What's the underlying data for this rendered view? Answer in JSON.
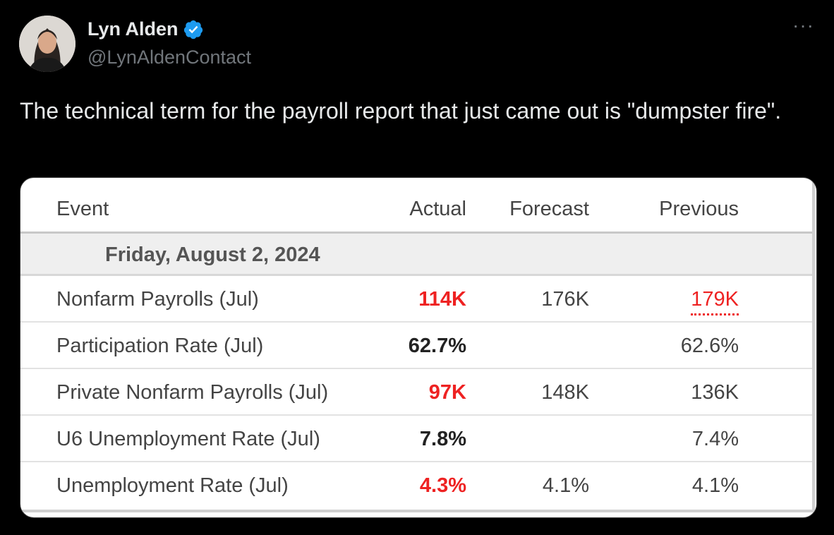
{
  "author": {
    "name": "Lyn Alden",
    "handle": "@LynAldenContact",
    "more_label": "···"
  },
  "tweet": {
    "text": "The technical term for the payroll report that just came out is \"dumpster fire\"."
  },
  "table": {
    "headers": {
      "event": "Event",
      "actual": "Actual",
      "forecast": "Forecast",
      "previous": "Previous"
    },
    "date": "Friday, August 2, 2024",
    "rows": [
      {
        "event": "Nonfarm Payrolls (Jul)",
        "actual": "114K",
        "forecast": "176K",
        "previous": "179K"
      },
      {
        "event": "Participation Rate (Jul)",
        "actual": "62.7%",
        "forecast": "",
        "previous": "62.6%"
      },
      {
        "event": "Private Nonfarm Payrolls (Jul)",
        "actual": "97K",
        "forecast": "148K",
        "previous": "136K"
      },
      {
        "event": "U6 Unemployment Rate (Jul)",
        "actual": "7.8%",
        "forecast": "",
        "previous": "7.4%"
      },
      {
        "event": "Unemployment Rate (Jul)",
        "actual": "4.3%",
        "forecast": "4.1%",
        "previous": "4.1%"
      }
    ]
  },
  "colors": {
    "negative": "#ee2222",
    "verified": "#1d9bf0",
    "background": "#000000"
  }
}
